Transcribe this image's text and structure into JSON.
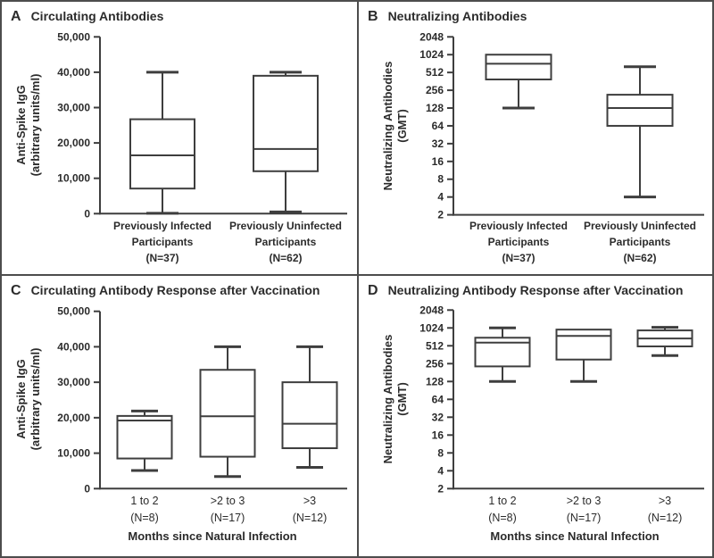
{
  "colors": {
    "line": "#3e3e3e",
    "text": "#2b2b2b",
    "panel_border": "#4d4d4d",
    "background": "#ffffff"
  },
  "chart_data": [
    {
      "id": "A",
      "panel_letter": "A",
      "title": "Circulating Antibodies",
      "type": "box",
      "scale": "linear",
      "ylim": [
        0,
        50000
      ],
      "ylabel_lines": [
        "Anti-Spike IgG",
        "(arbitrary units/ml)"
      ],
      "yticks": [
        {
          "v": 50000,
          "label": "50,000"
        },
        {
          "v": 40000,
          "label": "40,000"
        },
        {
          "v": 30000,
          "label": "30,000"
        },
        {
          "v": 20000,
          "label": "20,000"
        },
        {
          "v": 10000,
          "label": "10,000"
        },
        {
          "v": 0,
          "label": "0"
        }
      ],
      "xlabel": "",
      "groups": [
        {
          "label_lines": [
            "Previously Infected",
            "Participants",
            "(N=37)"
          ],
          "min": 100,
          "q1": 7100,
          "median": 16500,
          "q3": 26700,
          "max": 40000
        },
        {
          "label_lines": [
            "Previously Uninfected",
            "Participants",
            "(N=62)"
          ],
          "min": 500,
          "q1": 12000,
          "median": 18300,
          "q3": 39000,
          "max": 40000
        }
      ]
    },
    {
      "id": "B",
      "panel_letter": "B",
      "title": "Neutralizing Antibodies",
      "type": "box",
      "scale": "log2",
      "ylim": [
        2,
        2048
      ],
      "ylabel_lines": [
        "Neutralizing Antibodies",
        "(GMT)"
      ],
      "yticks": [
        {
          "v": 2048,
          "label": "2048"
        },
        {
          "v": 1024,
          "label": "1024"
        },
        {
          "v": 512,
          "label": "512"
        },
        {
          "v": 256,
          "label": "256"
        },
        {
          "v": 128,
          "label": "128"
        },
        {
          "v": 64,
          "label": "64"
        },
        {
          "v": 32,
          "label": "32"
        },
        {
          "v": 16,
          "label": "16"
        },
        {
          "v": 8,
          "label": "8"
        },
        {
          "v": 4,
          "label": "4"
        },
        {
          "v": 2,
          "label": "2"
        }
      ],
      "xlabel": "",
      "groups": [
        {
          "label_lines": [
            "Previously Infected",
            "Participants",
            "(N=37)"
          ],
          "min": 128,
          "q1": 390,
          "median": 720,
          "q3": 1024,
          "max": 1024
        },
        {
          "label_lines": [
            "Previously Uninfected",
            "Participants",
            "(N=62)"
          ],
          "min": 4,
          "q1": 64,
          "median": 128,
          "q3": 215,
          "max": 640
        }
      ]
    },
    {
      "id": "C",
      "panel_letter": "C",
      "title": "Circulating Antibody Response after Vaccination",
      "type": "box",
      "scale": "linear",
      "ylim": [
        0,
        50000
      ],
      "ylabel_lines": [
        "Anti-Spike IgG",
        "(arbitrary units/ml)"
      ],
      "yticks": [
        {
          "v": 50000,
          "label": "50,000"
        },
        {
          "v": 40000,
          "label": "40,000"
        },
        {
          "v": 30000,
          "label": "30,000"
        },
        {
          "v": 20000,
          "label": "20,000"
        },
        {
          "v": 10000,
          "label": "10,000"
        },
        {
          "v": 0,
          "label": "0"
        }
      ],
      "xlabel": "Months since Natural Infection",
      "groups": [
        {
          "label_lines": [
            "1 to 2",
            "(N=8)"
          ],
          "min": 5100,
          "q1": 8500,
          "median": 19200,
          "q3": 20500,
          "max": 21900
        },
        {
          "label_lines": [
            ">2 to 3",
            "(N=17)"
          ],
          "min": 3400,
          "q1": 9000,
          "median": 20400,
          "q3": 33500,
          "max": 40000
        },
        {
          "label_lines": [
            ">3",
            "(N=12)"
          ],
          "min": 6000,
          "q1": 11400,
          "median": 18300,
          "q3": 30000,
          "max": 40000
        }
      ]
    },
    {
      "id": "D",
      "panel_letter": "D",
      "title": "Neutralizing Antibody Response after Vaccination",
      "type": "box",
      "scale": "log2",
      "ylim": [
        2,
        2048
      ],
      "ylabel_lines": [
        "Neutralizing Antibodies",
        "(GMT)"
      ],
      "yticks": [
        {
          "v": 2048,
          "label": "2048"
        },
        {
          "v": 1024,
          "label": "1024"
        },
        {
          "v": 512,
          "label": "512"
        },
        {
          "v": 256,
          "label": "256"
        },
        {
          "v": 128,
          "label": "128"
        },
        {
          "v": 64,
          "label": "64"
        },
        {
          "v": 32,
          "label": "32"
        },
        {
          "v": 16,
          "label": "16"
        },
        {
          "v": 8,
          "label": "8"
        },
        {
          "v": 4,
          "label": "4"
        },
        {
          "v": 2,
          "label": "2"
        }
      ],
      "xlabel": "Months since Natural Infection",
      "groups": [
        {
          "label_lines": [
            "1 to 2",
            "(N=8)"
          ],
          "min": 128,
          "q1": 230,
          "median": 580,
          "q3": 700,
          "max": 1024
        },
        {
          "label_lines": [
            ">2 to 3",
            "(N=17)"
          ],
          "min": 128,
          "q1": 300,
          "median": 750,
          "q3": 960,
          "max": 960
        },
        {
          "label_lines": [
            ">3",
            "(N=12)"
          ],
          "min": 350,
          "q1": 500,
          "median": 680,
          "q3": 930,
          "max": 1050
        }
      ]
    }
  ]
}
